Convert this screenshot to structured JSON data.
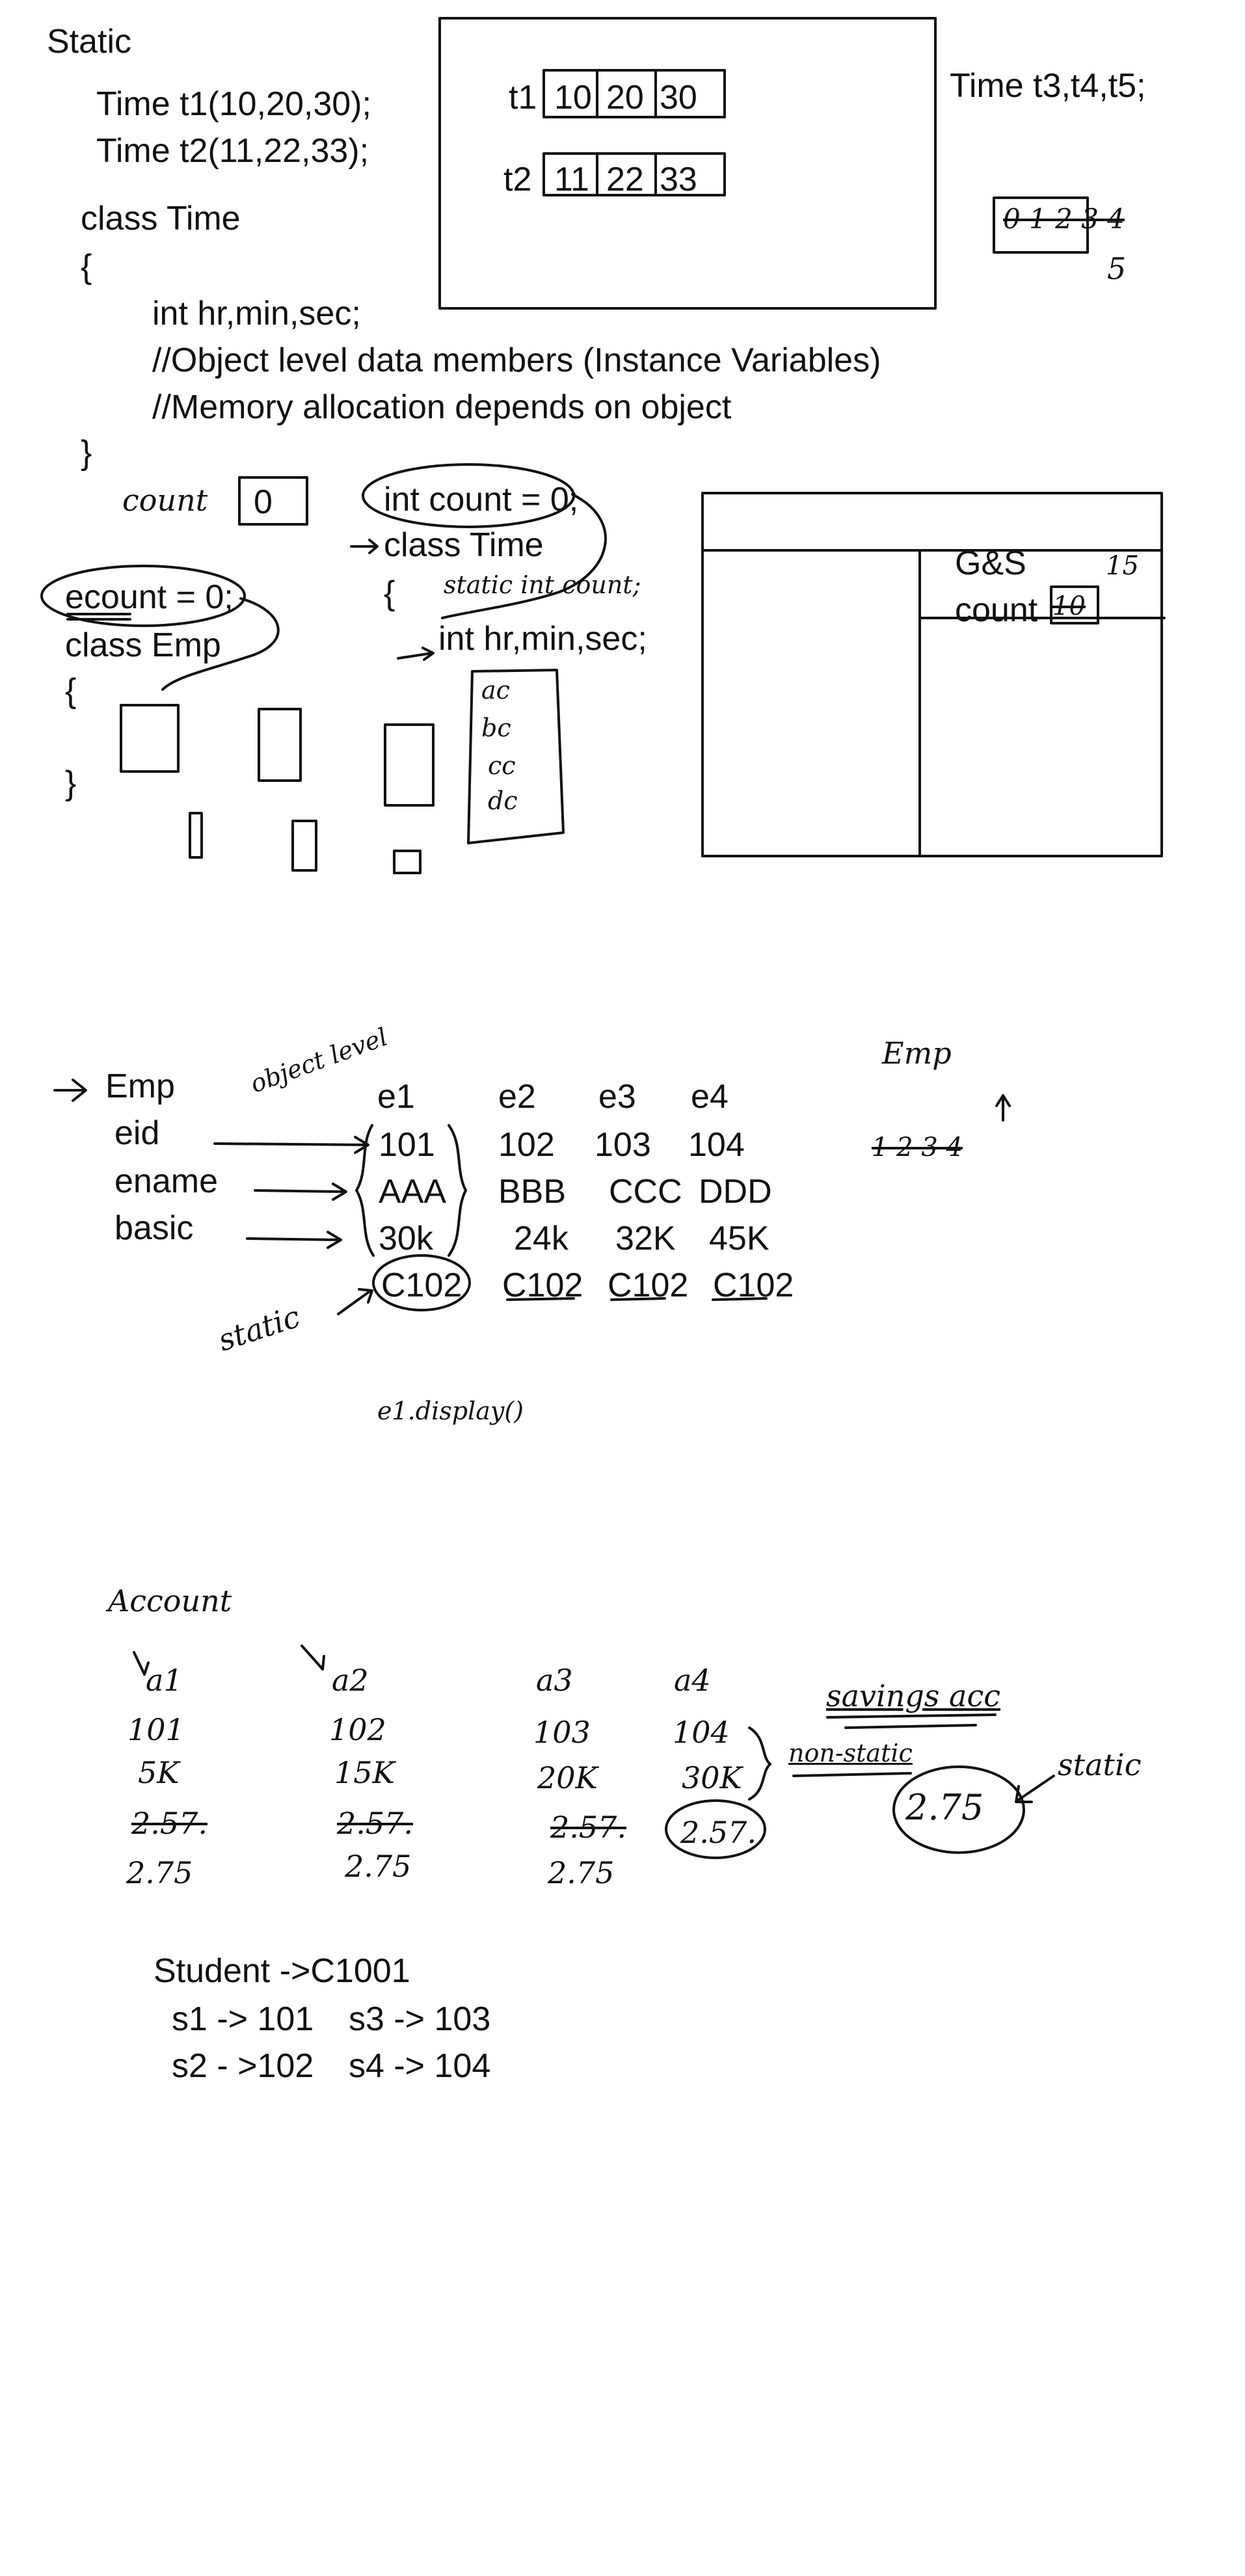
{
  "s1": {
    "title": "Static",
    "l1": "Time t1(10,20,30);",
    "l2": "Time t2(11,22,33);",
    "cls": "class Time",
    "ob": "{",
    "m1": "int hr,min,sec;",
    "m2": "//Object level data members (Instance Variables)",
    "m3": "//Memory allocation depends on object",
    "cb": "}",
    "t1": "t1",
    "t1v": [
      "10",
      "20",
      "30"
    ],
    "t2": "t2",
    "t2v": [
      "11",
      "22",
      "33"
    ],
    "right": "Time t3,t4,t5;",
    "cnt_seq": "0 1 2 3 4",
    "cnt_5": "5"
  },
  "s2": {
    "count_lbl": "count",
    "count_val": "0",
    "ic": "int count = 0;",
    "ct": "class Time",
    "ob": "{",
    "st": "static int count;",
    "mem": "int hr,min,sec;",
    "ec": "ecount = 0;",
    "ce": "class Emp",
    "ob2": "{",
    "cb2": "}",
    "stack": [
      "ac",
      "bc",
      "cc",
      "dc"
    ],
    "gs": "G&S",
    "cnt": "count",
    "cnt_val": "10",
    "n15": "15"
  },
  "s3": {
    "emp": "Emp",
    "fields": [
      "eid",
      "ename",
      "basic"
    ],
    "obj_lvl": "object level",
    "cols": [
      {
        "h": "e1",
        "v": [
          "101",
          "AAA",
          "30k",
          "C102"
        ]
      },
      {
        "h": "e2",
        "v": [
          "102",
          "BBB",
          "24k",
          "C102"
        ]
      },
      {
        "h": "e3",
        "v": [
          "103",
          "CCC",
          "32K",
          "C102"
        ]
      },
      {
        "h": "e4",
        "v": [
          "104",
          "DDD",
          "45K",
          "C102"
        ]
      }
    ],
    "static": "static",
    "call": "e1.display()",
    "emp2": "Emp",
    "seq": "1 2 3 4"
  },
  "s4": {
    "acct": "Account",
    "cols": [
      {
        "h": "a1",
        "id": "101",
        "bal": "5K",
        "old": "2.57.",
        "new": "2.75"
      },
      {
        "h": "a2",
        "id": "102",
        "bal": "15K",
        "old": "2.57.",
        "new": "2.75"
      },
      {
        "h": "a3",
        "id": "103",
        "bal": "20K",
        "old": "2.57.",
        "new": "2.75"
      },
      {
        "h": "a4",
        "id": "104",
        "bal": "30K",
        "old": "2.57.",
        "new": ""
      }
    ],
    "savings": "savings acc",
    "nonstatic": "non-static",
    "st_val": "2.75",
    "static": "static"
  },
  "s5": {
    "stu": "Student ->C1001",
    "r1a": "s1 -> 101",
    "r1b": "s3 -> 103",
    "r2a": "s2 - >102",
    "r2b": "s4 -> 104"
  }
}
